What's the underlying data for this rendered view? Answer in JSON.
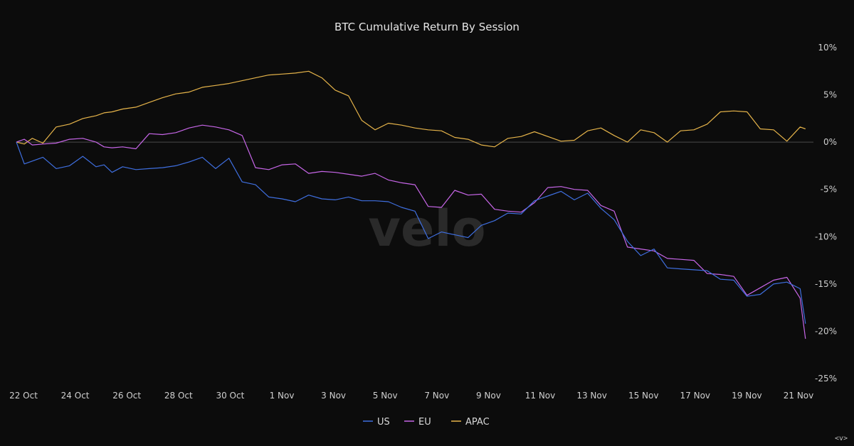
{
  "chart_data": {
    "type": "line",
    "title": "BTC Cumulative Return By Session",
    "watermark": "velo",
    "corner_text": "<v>",
    "x_ticks": [
      "22 Oct",
      "24 Oct",
      "26 Oct",
      "28 Oct",
      "30 Oct",
      "1 Nov",
      "3 Nov",
      "5 Nov",
      "7 Nov",
      "9 Nov",
      "11 Nov",
      "13 Nov",
      "15 Nov",
      "17 Nov",
      "19 Nov",
      "21 Nov"
    ],
    "y_ticks": [
      {
        "value": 10,
        "label": "10%"
      },
      {
        "value": 5,
        "label": "5%"
      },
      {
        "value": 0,
        "label": "0%"
      },
      {
        "value": -5,
        "label": "-5%"
      },
      {
        "value": -10,
        "label": "-10%"
      },
      {
        "value": -15,
        "label": "-15%"
      },
      {
        "value": -20,
        "label": "-20%"
      },
      {
        "value": -25,
        "label": "-25%"
      }
    ],
    "xlim": [
      0,
      30
    ],
    "ylim": [
      -25,
      10
    ],
    "zero_line": true,
    "legend_position": "bottom-center",
    "series": [
      {
        "name": "US",
        "color": "#3f6fe0",
        "x": [
          0,
          0.3,
          0.6,
          1,
          1.5,
          2,
          2.5,
          3,
          3.3,
          3.6,
          4,
          4.5,
          5,
          5.5,
          6,
          6.5,
          7,
          7.5,
          8,
          8.5,
          9,
          9.5,
          10,
          10.5,
          11,
          11.5,
          12,
          12.5,
          13,
          13.5,
          14,
          14.5,
          15,
          15.5,
          16,
          16.5,
          17,
          17.5,
          18,
          18.5,
          19,
          19.5,
          20,
          20.5,
          21,
          21.5,
          22,
          22.5,
          23,
          23.5,
          24,
          24.5,
          25,
          25.5,
          26,
          26.5,
          27,
          27.5,
          28,
          28.5,
          29,
          29.5,
          29.7
        ],
        "y": [
          0,
          -2.3,
          -2,
          -1.6,
          -2.8,
          -2.5,
          -1.5,
          -2.6,
          -2.4,
          -3.2,
          -2.6,
          -2.9,
          -2.8,
          -2.7,
          -2.5,
          -2.1,
          -1.6,
          -2.8,
          -1.7,
          -4.2,
          -4.5,
          -5.8,
          -6,
          -6.3,
          -5.6,
          -6,
          -6.1,
          -5.8,
          -6.2,
          -6.2,
          -6.3,
          -6.9,
          -7.3,
          -10.2,
          -9.5,
          -9.8,
          -10.1,
          -8.8,
          -8.3,
          -7.5,
          -7.6,
          -6.2,
          -5.7,
          -5.2,
          -6.1,
          -5.4,
          -7,
          -8.2,
          -10.5,
          -12,
          -11.3,
          -13.3,
          -13.4,
          -13.5,
          -13.6,
          -14.5,
          -14.6,
          -16.3,
          -16.1,
          -15,
          -14.8,
          -15.5,
          -19.2
        ]
      },
      {
        "name": "EU",
        "color": "#c766e8",
        "x": [
          0,
          0.3,
          0.6,
          1,
          1.5,
          2,
          2.5,
          3,
          3.3,
          3.6,
          4,
          4.5,
          5,
          5.5,
          6,
          6.5,
          7,
          7.5,
          8,
          8.5,
          9,
          9.5,
          10,
          10.5,
          11,
          11.5,
          12,
          12.5,
          13,
          13.5,
          14,
          14.5,
          15,
          15.5,
          16,
          16.5,
          17,
          17.5,
          18,
          18.5,
          19,
          19.5,
          20,
          20.5,
          21,
          21.5,
          22,
          22.5,
          23,
          23.5,
          24,
          24.5,
          25,
          25.5,
          26,
          26.5,
          27,
          27.5,
          28,
          28.5,
          29,
          29.5,
          29.7
        ],
        "y": [
          0,
          0.3,
          -0.3,
          -0.2,
          -0.1,
          0.3,
          0.4,
          0,
          -0.5,
          -0.6,
          -0.5,
          -0.7,
          0.9,
          0.8,
          1,
          1.5,
          1.8,
          1.6,
          1.3,
          0.7,
          -2.7,
          -2.9,
          -2.4,
          -2.3,
          -3.3,
          -3.1,
          -3.2,
          -3.4,
          -3.6,
          -3.3,
          -4,
          -4.3,
          -4.5,
          -6.8,
          -6.9,
          -5.1,
          -5.6,
          -5.5,
          -7.1,
          -7.3,
          -7.4,
          -6.4,
          -4.8,
          -4.7,
          -5,
          -5.1,
          -6.7,
          -7.3,
          -11.1,
          -11.3,
          -11.5,
          -12.3,
          -12.4,
          -12.5,
          -13.9,
          -14,
          -14.2,
          -16.2,
          -15.4,
          -14.6,
          -14.3,
          -16.5,
          -20.8
        ]
      },
      {
        "name": "APAC",
        "color": "#e6b44a",
        "x": [
          0,
          0.3,
          0.6,
          1,
          1.5,
          2,
          2.5,
          3,
          3.3,
          3.6,
          4,
          4.5,
          5,
          5.5,
          6,
          6.5,
          7,
          7.5,
          8,
          8.5,
          9,
          9.5,
          10,
          10.5,
          11,
          11.5,
          12,
          12.5,
          13,
          13.5,
          14,
          14.5,
          15,
          15.5,
          16,
          16.5,
          17,
          17.5,
          18,
          18.5,
          19,
          19.5,
          20,
          20.5,
          21,
          21.5,
          22,
          22.5,
          23,
          23.5,
          24,
          24.5,
          25,
          25.5,
          26,
          26.5,
          27,
          27.5,
          28,
          28.5,
          29,
          29.5,
          29.7
        ],
        "y": [
          0,
          -0.2,
          0.4,
          -0.1,
          1.6,
          1.9,
          2.5,
          2.8,
          3.1,
          3.2,
          3.5,
          3.7,
          4.2,
          4.7,
          5.1,
          5.3,
          5.8,
          6,
          6.2,
          6.5,
          6.8,
          7.1,
          7.2,
          7.3,
          7.5,
          6.8,
          5.5,
          4.9,
          2.3,
          1.3,
          2,
          1.8,
          1.5,
          1.3,
          1.2,
          0.5,
          0.3,
          -0.3,
          -0.5,
          0.4,
          0.6,
          1.1,
          0.6,
          0.1,
          0.2,
          1.2,
          1.5,
          0.7,
          0,
          1.3,
          1,
          0,
          1.2,
          1.3,
          1.9,
          3.2,
          3.3,
          3.2,
          1.4,
          1.3,
          0.1,
          1.6,
          1.4
        ]
      }
    ]
  }
}
